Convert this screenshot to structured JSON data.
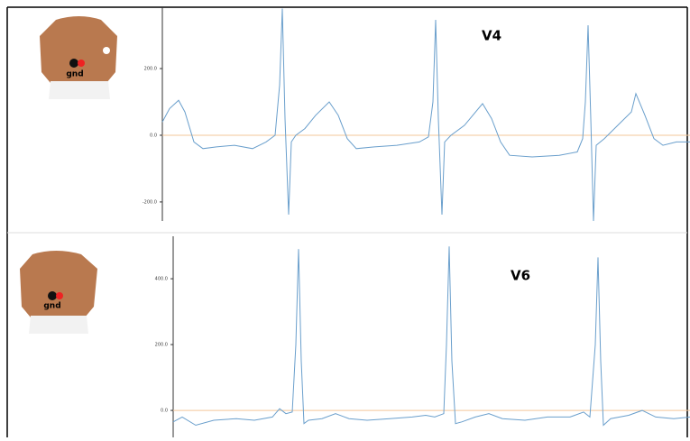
{
  "chart_data": [
    {
      "type": "line",
      "title": "V4",
      "ground_label": "gnd",
      "color": "#6a9fcc",
      "xlim": [
        0,
        585
      ],
      "ylim": [
        -257,
        384
      ],
      "yticks": [
        {
          "value": 200,
          "label": "200.0"
        },
        {
          "value": 0,
          "label": "0.0"
        },
        {
          "value": -200,
          "label": "-200.0"
        }
      ],
      "reference_line": {
        "value": 0,
        "color": "#f3c79a"
      },
      "x": [
        0,
        8,
        18,
        25,
        35,
        45,
        60,
        80,
        100,
        115,
        125,
        130,
        133,
        136,
        140,
        143,
        148,
        158,
        170,
        185,
        195,
        205,
        215,
        235,
        260,
        285,
        295,
        300,
        303,
        306,
        310,
        313,
        320,
        335,
        355,
        365,
        375,
        385,
        410,
        440,
        460,
        466,
        469,
        472,
        475,
        478,
        481,
        490,
        505,
        520,
        525,
        535,
        545,
        555,
        570,
        585
      ],
      "values": [
        40,
        80,
        105,
        70,
        -20,
        -40,
        -35,
        -30,
        -40,
        -20,
        0,
        150,
        380,
        50,
        -238,
        -20,
        0,
        20,
        60,
        100,
        60,
        -10,
        -40,
        -35,
        -30,
        -20,
        -5,
        100,
        346,
        50,
        -238,
        -20,
        0,
        30,
        95,
        50,
        -20,
        -60,
        -65,
        -60,
        -50,
        -10,
        100,
        330,
        50,
        -257,
        -30,
        -10,
        30,
        70,
        125,
        60,
        -10,
        -30,
        -20,
        -20
      ]
    },
    {
      "type": "line",
      "title": "V6",
      "ground_label": "gnd",
      "color": "#6a9fcc",
      "xlim": [
        0,
        573
      ],
      "ylim": [
        -82,
        529
      ],
      "yticks": [
        {
          "value": 400,
          "label": "400.0"
        },
        {
          "value": 200,
          "label": "200.0"
        },
        {
          "value": 0,
          "label": "0.0"
        }
      ],
      "reference_line": {
        "value": 0,
        "color": "#f3c79a"
      },
      "x": [
        0,
        10,
        25,
        45,
        70,
        90,
        110,
        118,
        125,
        132,
        136,
        139,
        142,
        145,
        150,
        165,
        180,
        195,
        215,
        240,
        265,
        280,
        290,
        300,
        303,
        306,
        309,
        313,
        320,
        335,
        350,
        365,
        390,
        415,
        440,
        455,
        462,
        468,
        471,
        474,
        477,
        485,
        505,
        520,
        535,
        555,
        573
      ],
      "values": [
        -35,
        -20,
        -45,
        -30,
        -25,
        -30,
        -20,
        5,
        -10,
        -5,
        200,
        490,
        150,
        -40,
        -30,
        -25,
        -10,
        -25,
        -30,
        -25,
        -20,
        -15,
        -20,
        -10,
        200,
        498,
        150,
        -40,
        -35,
        -20,
        -10,
        -25,
        -30,
        -20,
        -20,
        -5,
        -20,
        200,
        465,
        150,
        -45,
        -25,
        -15,
        0,
        -20,
        -25,
        -20
      ]
    }
  ]
}
